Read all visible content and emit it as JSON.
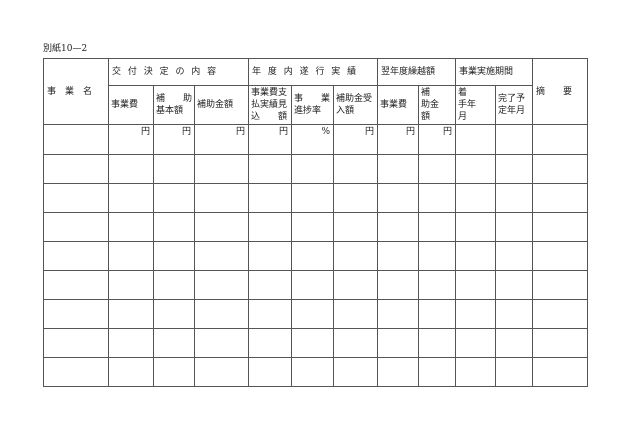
{
  "form_label": "別紙10—2",
  "headers": {
    "project_name": "事　業　名",
    "group_grant": "交 付 決 定 の 内 容",
    "group_year": "年 度 内 遂 行 実 績",
    "group_carry": "翌年度繰越額",
    "group_period": "事業実施期間",
    "summary": "摘　　要",
    "cols": [
      "事業費",
      "補　　助基本額",
      "補助金額",
      "事業費支払実績見込　　額",
      "事　　業進捗率",
      "補助金受入額",
      "事業費",
      "補　　助金　　額",
      "着　　手年　　月",
      "完了予定年月"
    ]
  },
  "units": [
    "円",
    "円",
    "円",
    "円",
    "%",
    "円",
    "円",
    "円",
    "",
    ""
  ],
  "row_count": 8
}
